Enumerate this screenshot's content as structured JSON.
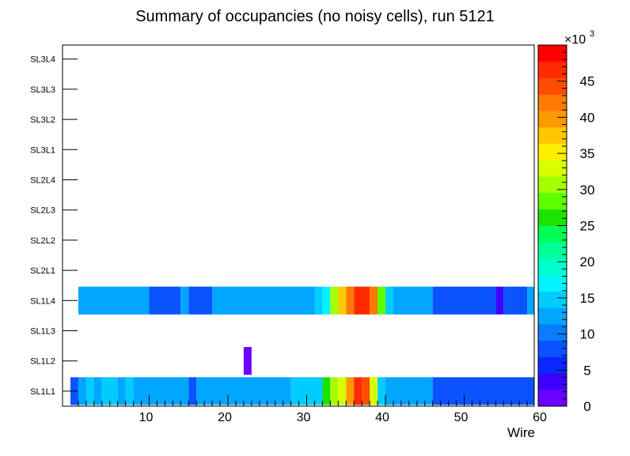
{
  "chart_data": {
    "type": "heatmap",
    "title": "Summary of occupancies (no noisy cells), run 5121",
    "xlabel": "Wire",
    "ylabel": "",
    "xlim": [
      0,
      60
    ],
    "x_ticks": [
      10,
      20,
      30,
      40,
      50,
      60
    ],
    "y_categories": [
      "SL1L1",
      "SL1L2",
      "SL1L3",
      "SL1L4",
      "SL2L1",
      "SL2L2",
      "SL2L3",
      "SL2L4",
      "SL3L1",
      "SL3L2",
      "SL3L3",
      "SL3L4"
    ],
    "colorbar": {
      "min": 0,
      "max": 50,
      "multiplier_label": "×10",
      "multiplier_exponent": "3",
      "tick_labels": [
        "0",
        "5",
        "10",
        "15",
        "20",
        "25",
        "30",
        "35",
        "40",
        "45"
      ],
      "tick_values": [
        0,
        5,
        10,
        15,
        20,
        25,
        30,
        35,
        40,
        45
      ],
      "palette": [
        "#6d01ff",
        "#3c00ff",
        "#0a28ff",
        "#0a53ff",
        "#0a7cff",
        "#00a6ff",
        "#00ccff",
        "#00f5ff",
        "#00ffcc",
        "#00ff99",
        "#00ff55",
        "#1ee100",
        "#5cff00",
        "#a6ff00",
        "#d8ff00",
        "#ffee00",
        "#ffc800",
        "#ff9900",
        "#ff7a00",
        "#ff4d00",
        "#ff2a00",
        "#ff0000"
      ]
    },
    "series": [
      {
        "name": "SL1L1",
        "row": 0,
        "segments": [
          {
            "x0": 0,
            "x1": 1,
            "value": 9
          },
          {
            "x0": 1,
            "x1": 2,
            "value": 12
          },
          {
            "x0": 2,
            "x1": 3,
            "value": 14
          },
          {
            "x0": 3,
            "x1": 4,
            "value": 12
          },
          {
            "x0": 4,
            "x1": 6,
            "value": 14
          },
          {
            "x0": 6,
            "x1": 7,
            "value": 12
          },
          {
            "x0": 7,
            "x1": 8,
            "value": 14
          },
          {
            "x0": 8,
            "x1": 15,
            "value": 12
          },
          {
            "x0": 15,
            "x1": 16,
            "value": 7
          },
          {
            "x0": 16,
            "x1": 28,
            "value": 12
          },
          {
            "x0": 28,
            "x1": 32,
            "value": 14
          },
          {
            "x0": 32,
            "x1": 33,
            "value": 25
          },
          {
            "x0": 33,
            "x1": 34,
            "value": 31
          },
          {
            "x0": 34,
            "x1": 35,
            "value": 33
          },
          {
            "x0": 35,
            "x1": 36,
            "value": 39
          },
          {
            "x0": 36,
            "x1": 37,
            "value": 47
          },
          {
            "x0": 37,
            "x1": 38,
            "value": 45
          },
          {
            "x0": 38,
            "x1": 39,
            "value": 33
          },
          {
            "x0": 39,
            "x1": 40,
            "value": 14
          },
          {
            "x0": 40,
            "x1": 46,
            "value": 12
          },
          {
            "x0": 46,
            "x1": 59,
            "value": 9
          }
        ]
      },
      {
        "name": "SL1L2",
        "row": 1,
        "segments": [
          {
            "x0": 22,
            "x1": 23,
            "value": 1
          }
        ]
      },
      {
        "name": "SL1L3",
        "row": 2,
        "segments": []
      },
      {
        "name": "SL1L4",
        "row": 3,
        "segments": [
          {
            "x0": 1,
            "x1": 10,
            "value": 12
          },
          {
            "x0": 10,
            "x1": 14,
            "value": 9
          },
          {
            "x0": 14,
            "x1": 15,
            "value": 12
          },
          {
            "x0": 15,
            "x1": 18,
            "value": 9
          },
          {
            "x0": 18,
            "x1": 31,
            "value": 12
          },
          {
            "x0": 31,
            "x1": 32,
            "value": 14
          },
          {
            "x0": 32,
            "x1": 33,
            "value": 17
          },
          {
            "x0": 33,
            "x1": 34,
            "value": 31
          },
          {
            "x0": 34,
            "x1": 35,
            "value": 37
          },
          {
            "x0": 35,
            "x1": 36,
            "value": 43
          },
          {
            "x0": 36,
            "x1": 38,
            "value": 47
          },
          {
            "x0": 38,
            "x1": 39,
            "value": 42
          },
          {
            "x0": 39,
            "x1": 40,
            "value": 29
          },
          {
            "x0": 40,
            "x1": 41,
            "value": 14
          },
          {
            "x0": 41,
            "x1": 46,
            "value": 12
          },
          {
            "x0": 46,
            "x1": 54,
            "value": 9
          },
          {
            "x0": 54,
            "x1": 55,
            "value": 3
          },
          {
            "x0": 55,
            "x1": 58,
            "value": 9
          },
          {
            "x0": 58,
            "x1": 60,
            "value": 12
          }
        ]
      }
    ]
  }
}
